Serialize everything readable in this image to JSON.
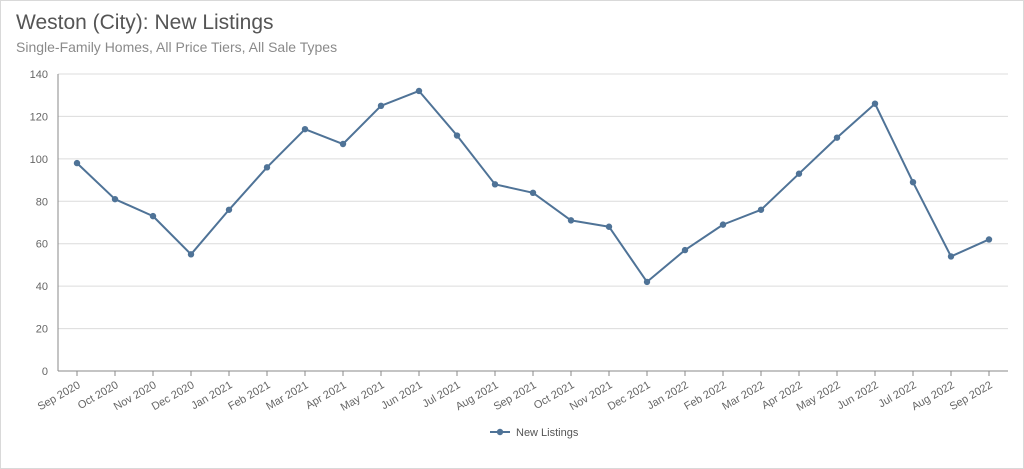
{
  "colors": {
    "series": "#4f7397",
    "grid": "#dcdcdc",
    "axis": "#888888"
  },
  "chart_data": {
    "type": "line",
    "title": "Weston (City): New Listings",
    "subtitle": "Single-Family Homes, All Price Tiers, All Sale Types",
    "xlabel": "",
    "ylabel": "",
    "ylim": [
      0,
      140
    ],
    "yticks": [
      0,
      20,
      40,
      60,
      80,
      100,
      120,
      140
    ],
    "categories": [
      "Sep 2020",
      "Oct 2020",
      "Nov 2020",
      "Dec 2020",
      "Jan 2021",
      "Feb 2021",
      "Mar 2021",
      "Apr 2021",
      "May 2021",
      "Jun 2021",
      "Jul 2021",
      "Aug 2021",
      "Sep 2021",
      "Oct 2021",
      "Nov 2021",
      "Dec 2021",
      "Jan 2022",
      "Feb 2022",
      "Mar 2022",
      "Apr 2022",
      "May 2022",
      "Jun 2022",
      "Jul 2022",
      "Aug 2022",
      "Sep 2022"
    ],
    "series": [
      {
        "name": "New Listings",
        "values": [
          98,
          81,
          73,
          55,
          76,
          96,
          114,
          107,
          125,
          132,
          111,
          88,
          84,
          71,
          68,
          42,
          57,
          69,
          76,
          93,
          110,
          126,
          89,
          54,
          62
        ]
      }
    ],
    "grid": true,
    "legend": "bottom-center"
  }
}
